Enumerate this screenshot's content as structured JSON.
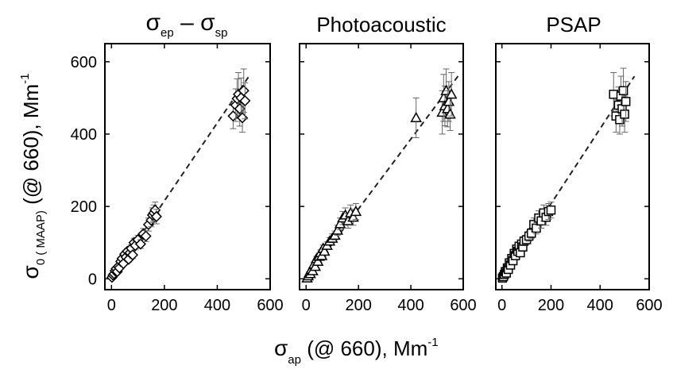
{
  "chart_data": [
    {
      "type": "scatter",
      "title_main": "σ",
      "title_sub1": "ep",
      "title_mid": " – σ",
      "title_sub2": "sp",
      "xlim": [
        -25,
        600
      ],
      "ylim": [
        -30,
        650
      ],
      "xticks": [
        0,
        200,
        400,
        600
      ],
      "yticks": [
        0,
        200,
        400,
        600
      ],
      "marker": "diamond",
      "fit_line": {
        "x": [
          0,
          520
        ],
        "y": [
          0,
          560
        ],
        "style": "dashed"
      },
      "x": [
        2,
        6,
        10,
        14,
        18,
        22,
        26,
        30,
        35,
        40,
        45,
        50,
        55,
        60,
        65,
        70,
        75,
        80,
        85,
        90,
        100,
        110,
        120,
        130,
        140,
        150,
        155,
        160,
        165,
        170,
        460,
        470,
        475,
        480,
        485,
        490,
        495,
        500,
        505
      ],
      "y": [
        4,
        10,
        14,
        22,
        28,
        20,
        34,
        30,
        48,
        56,
        42,
        68,
        60,
        76,
        54,
        72,
        84,
        66,
        100,
        92,
        108,
        96,
        124,
        118,
        150,
        162,
        176,
        182,
        190,
        172,
        450,
        480,
        498,
        510,
        470,
        500,
        445,
        520,
        492
      ],
      "yerr": [
        2,
        3,
        3,
        4,
        4,
        4,
        5,
        5,
        6,
        6,
        6,
        8,
        8,
        8,
        8,
        10,
        10,
        10,
        12,
        12,
        12,
        12,
        15,
        15,
        18,
        18,
        20,
        22,
        22,
        20,
        35,
        45,
        55,
        60,
        48,
        55,
        40,
        60,
        50
      ]
    },
    {
      "type": "scatter",
      "title": "Photoacoustic",
      "xlim": [
        -25,
        600
      ],
      "ylim": [
        -30,
        650
      ],
      "xticks": [
        0,
        200,
        400,
        600
      ],
      "yticks": [
        0,
        200,
        400,
        600
      ],
      "marker": "triangle",
      "fit_line": {
        "x": [
          0,
          580
        ],
        "y": [
          0,
          560
        ],
        "style": "dashed"
      },
      "x": [
        4,
        8,
        12,
        16,
        20,
        25,
        30,
        35,
        40,
        45,
        50,
        55,
        60,
        65,
        70,
        80,
        90,
        100,
        110,
        120,
        130,
        140,
        150,
        160,
        170,
        180,
        190,
        420,
        520,
        525,
        530,
        535,
        540,
        545,
        550,
        555
      ],
      "y": [
        2,
        8,
        16,
        14,
        26,
        22,
        40,
        34,
        56,
        48,
        62,
        72,
        64,
        84,
        76,
        92,
        104,
        112,
        120,
        134,
        152,
        168,
        176,
        160,
        182,
        170,
        186,
        445,
        460,
        500,
        478,
        520,
        470,
        490,
        455,
        510
      ],
      "yerr": [
        2,
        3,
        3,
        4,
        4,
        5,
        5,
        6,
        6,
        7,
        7,
        8,
        8,
        9,
        9,
        10,
        10,
        12,
        12,
        14,
        16,
        18,
        20,
        20,
        22,
        22,
        22,
        55,
        60,
        65,
        55,
        60,
        50,
        55,
        45,
        60
      ]
    },
    {
      "type": "scatter",
      "title": "PSAP",
      "xlim": [
        -25,
        600
      ],
      "ylim": [
        -30,
        650
      ],
      "xticks": [
        0,
        200,
        400,
        600
      ],
      "yticks": [
        0,
        200,
        400,
        600
      ],
      "marker": "square",
      "fit_line": {
        "x": [
          0,
          540
        ],
        "y": [
          0,
          560
        ],
        "style": "dashed"
      },
      "x": [
        2,
        6,
        10,
        14,
        18,
        22,
        26,
        30,
        35,
        40,
        45,
        50,
        55,
        60,
        65,
        70,
        75,
        80,
        85,
        90,
        100,
        110,
        120,
        130,
        140,
        150,
        160,
        170,
        180,
        190,
        200,
        455,
        465,
        475,
        480,
        485,
        490,
        495,
        500,
        505
      ],
      "y": [
        2,
        6,
        12,
        20,
        16,
        30,
        26,
        44,
        38,
        56,
        50,
        70,
        64,
        82,
        76,
        90,
        72,
        96,
        88,
        104,
        108,
        118,
        126,
        150,
        140,
        168,
        160,
        182,
        170,
        186,
        190,
        510,
        450,
        480,
        440,
        505,
        470,
        520,
        455,
        490
      ],
      "yerr": [
        2,
        3,
        3,
        4,
        4,
        5,
        5,
        6,
        6,
        7,
        7,
        8,
        8,
        9,
        9,
        10,
        10,
        10,
        12,
        12,
        12,
        14,
        14,
        18,
        16,
        20,
        20,
        22,
        22,
        22,
        22,
        60,
        45,
        50,
        40,
        55,
        48,
        62,
        50,
        55
      ]
    }
  ],
  "y_axis_label": {
    "sigma": "σ",
    "sub": "0 ( MAAP)",
    "rest": "  (@ 660),  Mm",
    "sup": "-1"
  },
  "x_axis_label": {
    "sigma": "σ",
    "sub": "ap",
    "rest": "  (@ 660), Mm",
    "sup": "-1"
  }
}
